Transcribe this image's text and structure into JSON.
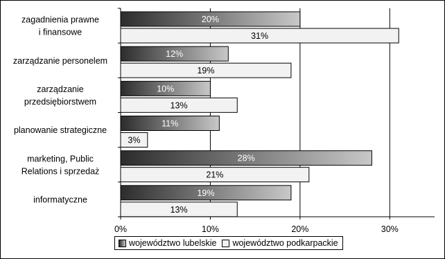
{
  "chart_data": {
    "type": "bar",
    "orientation": "horizontal",
    "categories": [
      [
        "zagadnienia prawne",
        "i finansowe"
      ],
      [
        "zarządzanie personelem"
      ],
      [
        "zarządzanie",
        "przedsiębiorstwem"
      ],
      [
        "planowanie strategiczne"
      ],
      [
        "marketing, Public",
        "Relations i sprzedaż"
      ],
      [
        "informatyczne"
      ]
    ],
    "series": [
      {
        "name": "województwo lubelskie",
        "values": [
          20,
          12,
          10,
          11,
          28,
          19
        ],
        "labels": [
          "20%",
          "12%",
          "10%",
          "11%",
          "28%",
          "19%"
        ],
        "color": "#6a6a6a"
      },
      {
        "name": "województwo podkarpackie",
        "values": [
          31,
          19,
          13,
          3,
          21,
          13
        ],
        "labels": [
          "31%",
          "19%",
          "13%",
          "3%",
          "21%",
          "13%"
        ],
        "color": "#f2f2f2"
      }
    ],
    "xlim": [
      0,
      35
    ],
    "xticks": [
      0,
      10,
      20,
      30
    ],
    "xtick_labels": [
      "0%",
      "10%",
      "20%",
      "30%"
    ],
    "grid": true,
    "legend_position": "bottom"
  }
}
